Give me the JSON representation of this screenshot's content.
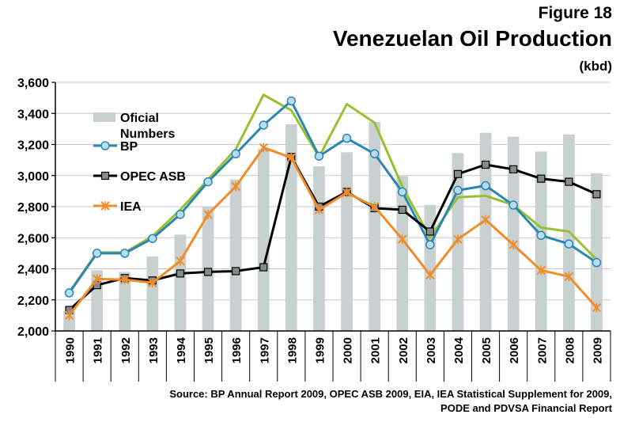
{
  "header": {
    "figure_label": "Figure 18",
    "title": "Venezuelan Oil Production",
    "unit": "(kbd)"
  },
  "source": {
    "line1": "Source: BP Annual Report 2009, OPEC ASB 2009, EIA,  IEA Statistical Supplement for 2009,",
    "line2": "PODE and PDVSA Financial Report"
  },
  "chart_data": {
    "type": "bar+line",
    "title": "Venezuelan Oil Production",
    "ylabel": "(kbd)",
    "ylim": [
      2000,
      3600
    ],
    "yticks": [
      2000,
      2200,
      2400,
      2600,
      2800,
      3000,
      3200,
      3400,
      3600
    ],
    "ytick_labels": [
      "2,000",
      "2,200",
      "2,400",
      "2,600",
      "2,800",
      "3,000",
      "3,200",
      "3,400",
      "3,600"
    ],
    "categories": [
      "1990",
      "1991",
      "1992",
      "1993",
      "1994",
      "1995",
      "1996",
      "1997",
      "1998",
      "1999",
      "2000",
      "2001",
      "2002",
      "2003",
      "2004",
      "2005",
      "2006",
      "2007",
      "2008",
      "2009"
    ],
    "grid": true,
    "legend_position": "top-left",
    "bars": {
      "name": "Oficial Numbers",
      "color": "#c8d0d0",
      "values": [
        2130,
        2390,
        2380,
        2480,
        2620,
        2800,
        2975,
        3170,
        3330,
        3060,
        3150,
        3345,
        2995,
        2810,
        3145,
        3275,
        3250,
        3155,
        3265,
        3015
      ]
    },
    "series": [
      {
        "name": "",
        "color": "#99c031",
        "marker": "none",
        "values": [
          2250,
          2505,
          2505,
          2610,
          2780,
          2975,
          3170,
          3520,
          3420,
          3120,
          3460,
          3340,
          2930,
          2600,
          2860,
          2870,
          2810,
          2665,
          2640,
          2460
        ]
      },
      {
        "name": "BP",
        "color": "#2a87b2",
        "marker": "circle",
        "values": [
          2245,
          2500,
          2500,
          2595,
          2750,
          2960,
          3140,
          3325,
          3480,
          3125,
          3240,
          3140,
          2895,
          2555,
          2905,
          2935,
          2810,
          2615,
          2560,
          2440
        ]
      },
      {
        "name": "OPEC ASB",
        "color": "#000000",
        "marker": "square",
        "values": [
          2135,
          2295,
          2340,
          2325,
          2370,
          2380,
          2385,
          2410,
          3120,
          2800,
          2895,
          2790,
          2780,
          2640,
          3010,
          3070,
          3040,
          2980,
          2960,
          2880
        ]
      },
      {
        "name": "IEA",
        "color": "#f08c2a",
        "marker": "x",
        "values": [
          2100,
          2335,
          2330,
          2310,
          2450,
          2750,
          2930,
          3180,
          3115,
          2780,
          2890,
          2800,
          2590,
          2360,
          2590,
          2715,
          2555,
          2390,
          2350,
          2150
        ]
      }
    ],
    "legend": [
      {
        "label": "Oficial",
        "label2": "Numbers",
        "kind": "bar"
      },
      {
        "label": "BP",
        "kind": "line"
      },
      {
        "label": "OPEC ASB",
        "kind": "line"
      },
      {
        "label": "IEA",
        "kind": "line"
      }
    ]
  }
}
